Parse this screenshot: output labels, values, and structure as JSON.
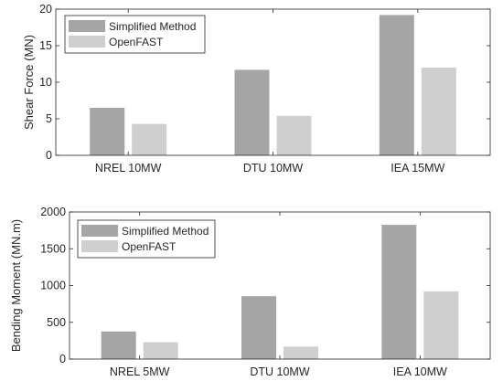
{
  "chart_data": [
    {
      "type": "bar",
      "title": "",
      "xlabel": "",
      "ylabel": "Shear Force (MN)",
      "categories": [
        "NREL 10MW",
        "DTU 10MW",
        "IEA 15MW"
      ],
      "ylim": [
        0,
        20
      ],
      "yticks": [
        0,
        5,
        10,
        15,
        20
      ],
      "legend_position": "top-left",
      "grid": false,
      "series": [
        {
          "name": "Simplified Method",
          "color": "#a5a5a5",
          "values": [
            6.5,
            11.7,
            19.2
          ]
        },
        {
          "name": "OpenFAST",
          "color": "#cfcfcf",
          "values": [
            4.3,
            5.4,
            12.0
          ]
        }
      ]
    },
    {
      "type": "bar",
      "title": "",
      "xlabel": "",
      "ylabel": "Bending Moment (MN.m)",
      "categories": [
        "NREL 5MW",
        "DTU 10MW",
        "IEA 10MW"
      ],
      "ylim": [
        0,
        2000
      ],
      "yticks": [
        0,
        500,
        1000,
        1500,
        2000
      ],
      "legend_position": "top-left",
      "grid": false,
      "series": [
        {
          "name": "Simplified Method",
          "color": "#a5a5a5",
          "values": [
            375,
            855,
            1825
          ]
        },
        {
          "name": "OpenFAST",
          "color": "#cfcfcf",
          "values": [
            230,
            170,
            920
          ]
        }
      ]
    }
  ]
}
